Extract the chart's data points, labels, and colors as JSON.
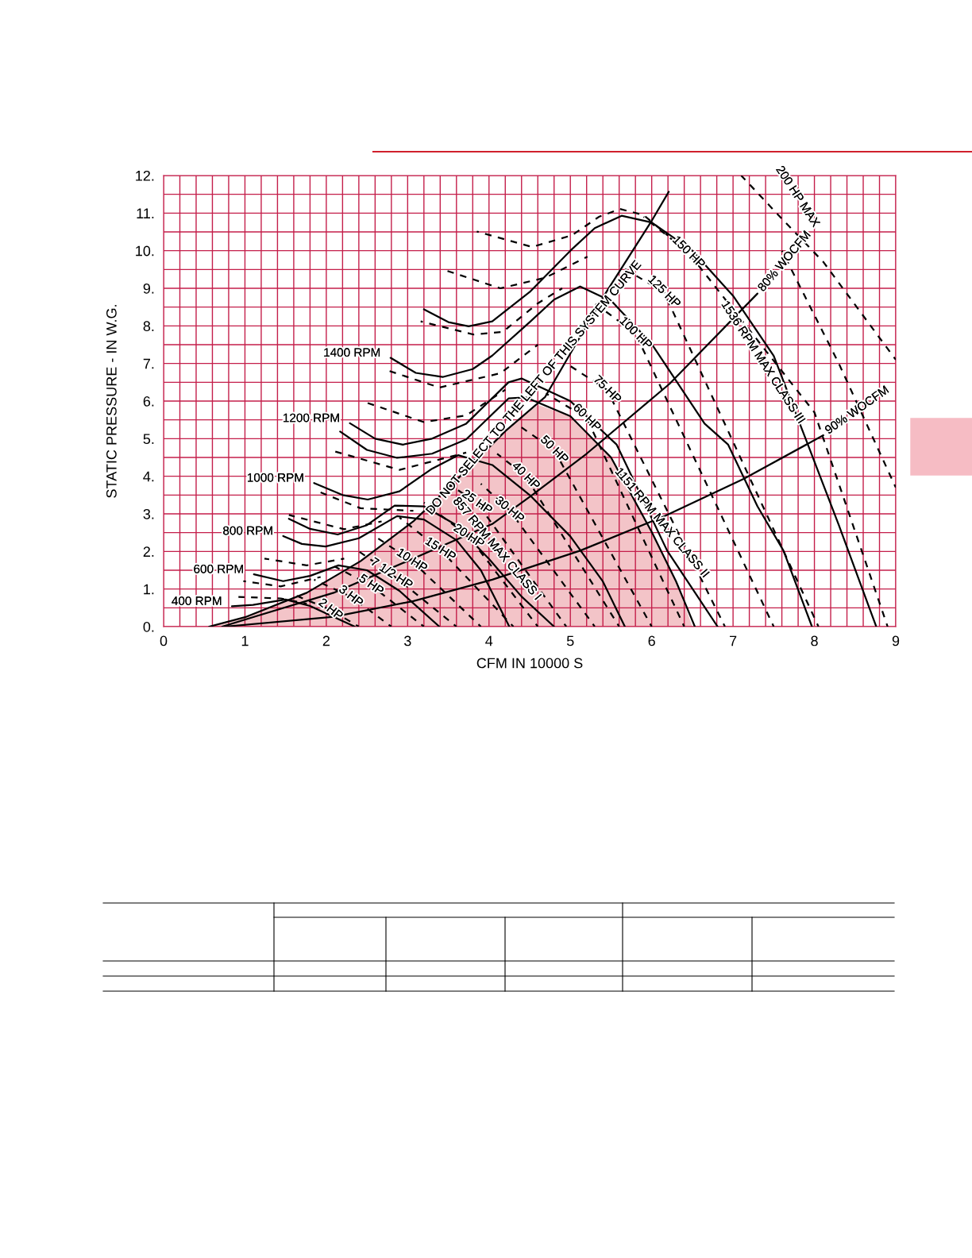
{
  "chart_data": {
    "type": "line",
    "xlabel": "CFM IN 10000 S",
    "ylabel": "STATIC PRESSURE - IN W.G.",
    "xlim": [
      0,
      9
    ],
    "ylim": [
      0,
      12
    ],
    "grid": true,
    "xticks": [
      0,
      {
        "value": 0.2,
        "label": null
      },
      {
        "value": 0.4,
        "label": null
      },
      {
        "value": 0.6,
        "label": null
      },
      {
        "value": 0.8,
        "label": null
      },
      1,
      {
        "value": 1.2,
        "label": null
      },
      {
        "value": 1.4,
        "label": null
      },
      {
        "value": 1.6,
        "label": null
      },
      {
        "value": 1.8,
        "label": null
      },
      2,
      {
        "value": 2.2,
        "label": null
      },
      {
        "value": 2.4,
        "label": null
      },
      {
        "value": 2.6,
        "label": null
      },
      {
        "value": 2.8,
        "label": null
      },
      3,
      {
        "value": 3.2,
        "label": null
      },
      {
        "value": 3.4,
        "label": null
      },
      {
        "value": 3.6,
        "label": null
      },
      {
        "value": 3.8,
        "label": null
      },
      4,
      {
        "value": 4.2,
        "label": null
      },
      {
        "value": 4.4,
        "label": null
      },
      {
        "value": 4.6,
        "label": null
      },
      {
        "value": 4.8,
        "label": null
      },
      5,
      {
        "value": 5.2,
        "label": null
      },
      {
        "value": 5.4,
        "label": null
      },
      {
        "value": 5.6,
        "label": null
      },
      {
        "value": 5.8,
        "label": null
      },
      6,
      {
        "value": 6.2,
        "label": null
      },
      {
        "value": 6.4,
        "label": null
      },
      {
        "value": 6.6,
        "label": null
      },
      {
        "value": 6.8,
        "label": null
      },
      7,
      {
        "value": 7.2,
        "label": null
      },
      {
        "value": 7.4,
        "label": null
      },
      {
        "value": 7.6,
        "label": null
      },
      {
        "value": 7.8,
        "label": null
      },
      8,
      {
        "value": 8.2,
        "label": null
      },
      {
        "value": 8.4,
        "label": null
      },
      {
        "value": 8.6,
        "label": null
      },
      {
        "value": 8.8,
        "label": null
      },
      9
    ],
    "yticks": [
      {
        "value": 0,
        "label": "0."
      },
      {
        "value": 0.5,
        "label": null
      },
      {
        "value": 1,
        "label": "1."
      },
      {
        "value": 1.5,
        "label": null
      },
      {
        "value": 2,
        "label": "2."
      },
      {
        "value": 2.5,
        "label": null
      },
      {
        "value": 3,
        "label": "3."
      },
      {
        "value": 3.5,
        "label": null
      },
      {
        "value": 4,
        "label": "4."
      },
      {
        "value": 4.5,
        "label": null
      },
      {
        "value": 5,
        "label": "5."
      },
      {
        "value": 5.5,
        "label": null
      },
      {
        "value": 6,
        "label": "6."
      },
      {
        "value": 6.5,
        "label": null
      },
      {
        "value": 7,
        "label": "7."
      },
      {
        "value": 7.5,
        "label": null
      },
      {
        "value": 8,
        "label": "8."
      },
      {
        "value": 8.5,
        "label": null
      },
      {
        "value": 9,
        "label": "9."
      },
      {
        "value": 9.5,
        "label": null
      },
      {
        "value": 10,
        "label": "10."
      },
      {
        "value": 10.5,
        "label": null
      },
      {
        "value": 11,
        "label": "11."
      },
      {
        "value": 11.5,
        "label": null
      },
      {
        "value": 12,
        "label": "12."
      }
    ],
    "series": [
      {
        "type": "area",
        "color": "#f3c4c8",
        "x": [
          0.56,
          1.0,
          1.76,
          2.42,
          3.07,
          3.6,
          4.2,
          4.6,
          5.0,
          5.5,
          6.0,
          6.3,
          6.5
        ],
        "values": [
          0,
          0.25,
          0.9,
          1.74,
          2.8,
          3.9,
          5.2,
          5.9,
          5.6,
          4.5,
          2.52,
          1.2,
          0
        ]
      },
      {
        "color": "#000000",
        "line_style": "solid",
        "x": [
          3.2,
          3.5,
          3.75,
          4.04,
          4.5,
          5.0,
          5.3,
          5.63,
          6.0,
          6.5,
          7.0,
          7.5,
          7.92,
          8.3,
          8.76
        ],
        "values": [
          8.44,
          8.1,
          7.99,
          8.12,
          8.9,
          10.0,
          10.6,
          10.93,
          10.75,
          10.0,
          8.8,
          7.2,
          4.84,
          2.7,
          0
        ]
      },
      {
        "color": "#000000",
        "line_style": "solid",
        "x": [
          2.79,
          3.1,
          3.43,
          3.8,
          4.04,
          4.5,
          4.8,
          5.12,
          5.51,
          6.0,
          6.65,
          6.94,
          7.3,
          7.62,
          7.97
        ],
        "values": [
          7.15,
          6.75,
          6.64,
          6.85,
          7.21,
          8.1,
          8.7,
          9.05,
          8.65,
          7.52,
          5.4,
          4.84,
          3.2,
          2.02,
          0
        ]
      },
      {
        "color": "#000000",
        "line_style": "solid",
        "x": [
          2.29,
          2.6,
          2.94,
          3.3,
          3.72,
          4.24,
          4.4,
          5.0,
          5.57,
          6.19,
          6.81
        ],
        "values": [
          5.41,
          5.0,
          4.84,
          5.0,
          5.4,
          6.5,
          6.6,
          6.0,
          4.84,
          2.02,
          0
        ]
      },
      {
        "color": "#000000",
        "line_style": "solid",
        "x": [
          2.17,
          2.5,
          2.87,
          3.3,
          3.72,
          4.24,
          4.45,
          5.0,
          5.5,
          6.0,
          6.3,
          6.53
        ],
        "values": [
          5.19,
          4.7,
          4.49,
          4.6,
          4.98,
          6.07,
          6.1,
          5.6,
          4.5,
          2.52,
          1.2,
          0
        ]
      },
      {
        "color": "#000000",
        "line_style": "solid",
        "x": [
          1.85,
          2.2,
          2.51,
          2.9,
          3.3,
          3.62,
          4.04,
          4.5,
          5.0,
          5.4,
          5.67
        ],
        "values": [
          3.82,
          3.5,
          3.38,
          3.6,
          4.2,
          4.56,
          4.3,
          3.5,
          2.4,
          1.2,
          0
        ]
      },
      {
        "color": "#000000",
        "line_style": "solid",
        "x": [
          1.54,
          1.8,
          2.14,
          2.5,
          2.84,
          3.2,
          3.6,
          4.0,
          4.4,
          4.8
        ],
        "values": [
          2.87,
          2.6,
          2.45,
          2.7,
          3.22,
          3.2,
          2.7,
          1.8,
          0.8,
          0
        ]
      },
      {
        "color": "#000000",
        "line_style": "solid",
        "x": [
          1.47,
          1.7,
          1.99,
          2.4,
          2.87,
          3.2,
          3.6,
          3.9,
          4.25
        ],
        "values": [
          2.41,
          2.2,
          2.13,
          2.35,
          2.94,
          2.85,
          2.3,
          1.5,
          0
        ]
      },
      {
        "color": "#000000",
        "line_style": "solid",
        "x": [
          1.11,
          1.47,
          1.8,
          2.15,
          2.5,
          2.9,
          3.39
        ],
        "values": [
          1.39,
          1.21,
          1.35,
          1.63,
          1.5,
          0.95,
          0
        ]
      },
      {
        "color": "#000000",
        "line_style": "solid",
        "x": [
          0.84,
          1.1,
          1.5,
          1.8,
          2.1,
          2.35
        ],
        "values": [
          0.54,
          0.58,
          0.72,
          0.55,
          0.25,
          0
        ]
      },
      {
        "color": "#000000",
        "line_style": "solid",
        "x": [
          0.56,
          1.0,
          1.76,
          2.42,
          3.07,
          3.6,
          4.2,
          4.69,
          5.41,
          5.99,
          6.21
        ],
        "values": [
          0,
          0.25,
          0.9,
          1.74,
          2.8,
          3.9,
          5.2,
          6.11,
          8.79,
          10.76,
          11.57
        ]
      },
      {
        "color": "#000000",
        "line_style": "solid",
        "x": [
          0.72,
          1.11,
          2.09,
          3.07,
          4.04,
          4.53,
          5.2,
          6.22,
          7.3
        ],
        "values": [
          0,
          0.26,
          0.9,
          1.81,
          2.73,
          3.5,
          4.6,
          6.46,
          8.86
        ]
      },
      {
        "color": "#000000",
        "line_style": "solid",
        "x": [
          0.75,
          2.09,
          3.07,
          4.04,
          5.12,
          6.16,
          7.13,
          8.11
        ],
        "values": [
          0,
          0.26,
          0.68,
          1.25,
          2.02,
          2.94,
          3.93,
          5.09
        ]
      },
      {
        "color": "#000000",
        "line_style": "dashed",
        "x": [
          3.85,
          4.53,
          5.02,
          5.35,
          5.61,
          5.9,
          6.2
        ],
        "values": [
          10.51,
          10.1,
          10.41,
          10.9,
          11.11,
          10.95,
          10.4
        ]
      },
      {
        "color": "#000000",
        "line_style": "dashed",
        "x": [
          3.49,
          4.14,
          4.69,
          5.21
        ],
        "values": [
          9.46,
          9.0,
          9.28,
          9.84
        ]
      },
      {
        "color": "#000000",
        "line_style": "dashed",
        "x": [
          3.16,
          3.81,
          4.17,
          4.6,
          4.9
        ],
        "values": [
          8.12,
          7.77,
          7.84,
          8.6,
          9.0
        ]
      },
      {
        "color": "#000000",
        "line_style": "dashed",
        "x": [
          2.76,
          3.39,
          4.14,
          4.6
        ],
        "values": [
          6.81,
          6.36,
          6.74,
          7.5
        ]
      },
      {
        "color": "#000000",
        "line_style": "dashed",
        "x": [
          2.48,
          3.2,
          3.72,
          4.2
        ],
        "values": [
          5.97,
          5.44,
          5.62,
          6.3
        ]
      },
      {
        "color": "#000000",
        "line_style": "dashed",
        "x": [
          2.09,
          2.9,
          3.72
        ],
        "values": [
          4.67,
          4.17,
          4.63
        ]
      },
      {
        "color": "#000000",
        "line_style": "dashed",
        "x": [
          1.93,
          2.42,
          3.07
        ],
        "values": [
          3.57,
          3.15,
          3.08
        ]
      },
      {
        "color": "#000000",
        "line_style": "dashed",
        "x": [
          1.54,
          2.22,
          2.68
        ],
        "values": [
          2.97,
          2.59,
          2.8
        ]
      },
      {
        "color": "#000000",
        "line_style": "dashed",
        "x": [
          1.24,
          1.76,
          2.22
        ],
        "values": [
          1.81,
          1.63,
          1.81
        ]
      },
      {
        "color": "#000000",
        "line_style": "dashed",
        "x": [
          0.98,
          1.44,
          1.93
        ],
        "values": [
          1.21,
          1.07,
          1.32
        ]
      },
      {
        "color": "#000000",
        "line_style": "dashed",
        "x": [
          0.92,
          1.44,
          1.76
        ],
        "values": [
          0.79,
          0.75,
          0.61
        ]
      },
      {
        "color": "#000000",
        "line_style": "dashed",
        "x": [
          1.6,
          2.05,
          2.4
        ],
        "values": [
          0.85,
          0.45,
          0
        ]
      },
      {
        "color": "#000000",
        "line_style": "dashed",
        "x": [
          1.85,
          2.3,
          2.8
        ],
        "values": [
          1.25,
          0.8,
          0
        ]
      },
      {
        "color": "#000000",
        "line_style": "dashed",
        "x": [
          2.1,
          2.55,
          3.2
        ],
        "values": [
          1.6,
          1.1,
          0
        ]
      },
      {
        "color": "#000000",
        "line_style": "dashed",
        "x": [
          2.4,
          2.8,
          3.6
        ],
        "values": [
          2.0,
          1.4,
          0
        ]
      },
      {
        "color": "#000000",
        "line_style": "dashed",
        "x": [
          2.6,
          3.05,
          3.9
        ],
        "values": [
          2.4,
          1.75,
          0
        ]
      },
      {
        "color": "#000000",
        "line_style": "dashed",
        "x": [
          2.9,
          3.4,
          4.3
        ],
        "values": [
          2.9,
          2.05,
          0
        ]
      },
      {
        "color": "#000000",
        "line_style": "dashed",
        "x": [
          3.2,
          3.75,
          4.6
        ],
        "values": [
          3.3,
          2.4,
          0
        ]
      },
      {
        "color": "#000000",
        "line_style": "dashed",
        "x": [
          3.5,
          3.85,
          4.95
        ],
        "values": [
          3.8,
          3.3,
          0
        ]
      },
      {
        "color": "#000000",
        "line_style": "dashed",
        "x": [
          3.9,
          4.25,
          5.3
        ],
        "values": [
          3.8,
          3.1,
          0
        ]
      },
      {
        "color": "#000000",
        "line_style": "dashed",
        "x": [
          4.1,
          4.45,
          5.6
        ],
        "values": [
          4.6,
          4.0,
          0
        ]
      },
      {
        "color": "#000000",
        "line_style": "dashed",
        "x": [
          4.4,
          4.8,
          6.0
        ],
        "values": [
          5.3,
          4.7,
          0
        ]
      },
      {
        "color": "#000000",
        "line_style": "dashed",
        "x": [
          4.7,
          5.2,
          6.4
        ],
        "values": [
          6.2,
          5.55,
          0
        ]
      },
      {
        "color": "#000000",
        "line_style": "dashed",
        "x": [
          4.95,
          5.45,
          6.9
        ],
        "values": [
          7.0,
          6.3,
          0
        ]
      },
      {
        "color": "#000000",
        "line_style": "dashed",
        "x": [
          5.3,
          5.8,
          7.5
        ],
        "values": [
          8.6,
          7.8,
          0
        ]
      },
      {
        "color": "#000000",
        "line_style": "dashed",
        "x": [
          5.6,
          6.15,
          8.05
        ],
        "values": [
          9.6,
          8.9,
          0
        ]
      },
      {
        "color": "#000000",
        "line_style": "dashed",
        "x": [
          5.9,
          6.45,
          8.0,
          8.9
        ],
        "values": [
          10.9,
          9.95,
          5.7,
          0
        ]
      },
      {
        "color": "#000000",
        "line_style": "dashed",
        "x": [
          7.1,
          7.6,
          8.11,
          9.0
        ],
        "values": [
          12.0,
          10.85,
          9.7,
          7.1
        ]
      },
      {
        "color": "#000000",
        "line_style": "dashed",
        "x": [
          7.6,
          8.3,
          9.0
        ],
        "values": [
          10.0,
          7.0,
          3.7
        ]
      }
    ],
    "annotations": [
      {
        "text": "1400 RPM",
        "x": 2.79,
        "y": 7.15
      },
      {
        "text": "1200 RPM",
        "x": 2.29,
        "y": 5.41
      },
      {
        "text": "1000 RPM",
        "x": 1.85,
        "y": 3.82
      },
      {
        "text": "800 RPM",
        "x": 1.47,
        "y": 2.41
      },
      {
        "text": "600 RPM",
        "x": 1.11,
        "y": 1.39
      },
      {
        "text": "400 RPM",
        "x": 0.84,
        "y": 0.54
      },
      {
        "text": "DO NOT SELECT TO THE LEFT OF THIS SYSTEM CURVE",
        "x": 4.69,
        "y": 6.11
      },
      {
        "text": "2 HP",
        "x": 2.05,
        "y": 0.45
      },
      {
        "text": "3 HP",
        "x": 2.3,
        "y": 0.8
      },
      {
        "text": "5 HP",
        "x": 2.55,
        "y": 1.1
      },
      {
        "text": "7 1/2 HP",
        "x": 2.8,
        "y": 1.4
      },
      {
        "text": "10 HP",
        "x": 3.05,
        "y": 1.75
      },
      {
        "text": "15 HP",
        "x": 3.4,
        "y": 2.05
      },
      {
        "text": "20 HP",
        "x": 3.75,
        "y": 2.4
      },
      {
        "text": "25 HP",
        "x": 3.85,
        "y": 3.3
      },
      {
        "text": "30 HP",
        "x": 4.25,
        "y": 3.1
      },
      {
        "text": "40 HP",
        "x": 4.45,
        "y": 4.0
      },
      {
        "text": "50 HP",
        "x": 4.8,
        "y": 4.7
      },
      {
        "text": "60 HP",
        "x": 5.2,
        "y": 5.55
      },
      {
        "text": "75 HP",
        "x": 5.45,
        "y": 6.3
      },
      {
        "text": "100 HP",
        "x": 5.8,
        "y": 7.8
      },
      {
        "text": "125 HP",
        "x": 6.15,
        "y": 8.9
      },
      {
        "text": "150 HP",
        "x": 6.45,
        "y": 9.95
      },
      {
        "text": "200 HP MAX",
        "x": 7.6,
        "y": 10.85
      },
      {
        "text": "80% WOCFM",
        "x": 7.3,
        "y": 8.86
      },
      {
        "text": "90% WOCFM",
        "x": 8.11,
        "y": 5.09
      },
      {
        "text": "857 RPM MAX CLASS I",
        "x": 4.0,
        "y": 1.8
      },
      {
        "text": "1151 RPM MAX CLASS II",
        "x": 6.0,
        "y": 2.52
      },
      {
        "text": "1536 RPM MAX CLASS III",
        "x": 7.5,
        "y": 7.2
      }
    ]
  }
}
